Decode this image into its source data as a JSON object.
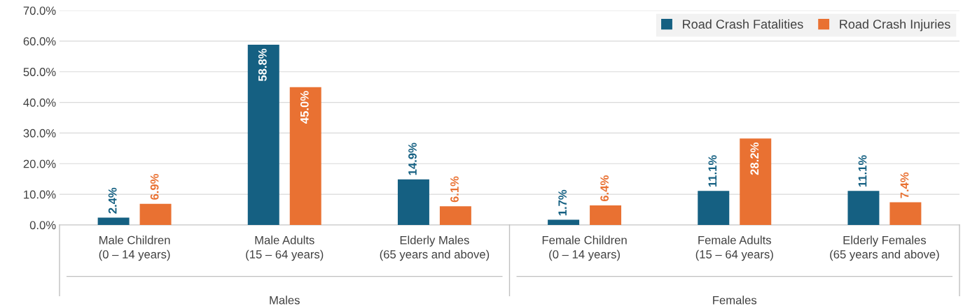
{
  "chart_data": {
    "type": "bar",
    "categories": [
      "Male Children\n(0 – 14 years)",
      "Male Adults\n(15 – 64 years)",
      "Elderly Males\n(65 years and above)",
      "Female Children\n(0 – 14 years)",
      "Female Adults\n(15 – 64 years)",
      "Elderly Females\n(65 years and above)"
    ],
    "series": [
      {
        "name": "Road Crash Fatalities",
        "color": "#156082",
        "values": [
          2.4,
          58.8,
          14.9,
          1.7,
          11.1,
          11.1
        ],
        "value_labels": [
          "2.4%",
          "58.8%",
          "14.9%",
          "1.7%",
          "11.1%",
          "11.1%"
        ]
      },
      {
        "name": "Road Crash Injuries",
        "color": "#e97132",
        "values": [
          6.9,
          45.0,
          6.1,
          6.4,
          28.2,
          7.4
        ],
        "value_labels": [
          "6.9%",
          "45.0%",
          "6.1%",
          "6.4%",
          "28.2%",
          "7.4%"
        ]
      }
    ],
    "annotations": [
      "Males",
      "Females"
    ],
    "ylim": [
      0,
      70
    ],
    "yticks": [
      {
        "value": 0,
        "label": "0.0%"
      },
      {
        "value": 10,
        "label": "10.0%"
      },
      {
        "value": 20,
        "label": "20.0%"
      },
      {
        "value": 30,
        "label": "30.0%"
      },
      {
        "value": 40,
        "label": "40.0%"
      },
      {
        "value": 50,
        "label": "50.0%"
      },
      {
        "value": 60,
        "label": "60.0%"
      },
      {
        "value": 70,
        "label": "70.0%"
      }
    ],
    "grid": "y",
    "legend": "top right"
  }
}
